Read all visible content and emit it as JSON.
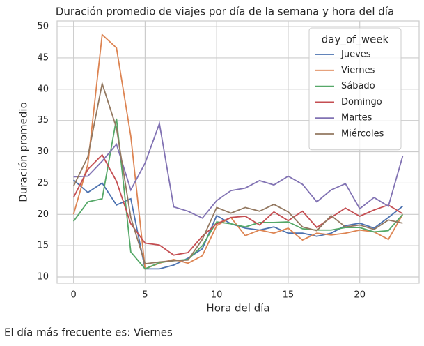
{
  "chart_data": {
    "type": "line",
    "title": "Duración promedio de viajes por día de la semana y hora del día",
    "x_label": "Hora del día",
    "y_label": "Duración promedio",
    "x": [
      0,
      1,
      2,
      3,
      4,
      5,
      6,
      7,
      8,
      9,
      10,
      11,
      12,
      13,
      14,
      15,
      16,
      17,
      18,
      19,
      20,
      21,
      22,
      23
    ],
    "xlim": [
      -1.15,
      24.15
    ],
    "xticks": [
      0,
      5,
      10,
      15,
      20
    ],
    "ylim": [
      9,
      50.9
    ],
    "yticks": [
      10,
      15,
      20,
      25,
      30,
      35,
      40,
      45,
      50
    ],
    "grid": true,
    "legend_title": "day_of_week",
    "legend_position": "upper-right",
    "series": [
      {
        "name": "Jueves",
        "color": "#4c72b0",
        "values": [
          25.5,
          23.5,
          25,
          21.5,
          22.5,
          11.3,
          11.3,
          11.9,
          13,
          14.5,
          19.8,
          18.5,
          17.8,
          17.5,
          18,
          17,
          17,
          16.5,
          17,
          18.2,
          18.6,
          17.8,
          19.5,
          21.3
        ]
      },
      {
        "name": "Viernes",
        "color": "#dd8452",
        "values": [
          20,
          28,
          48.7,
          46.6,
          32.5,
          11.3,
          12.2,
          12.8,
          12.2,
          13.4,
          18.2,
          19.5,
          16.6,
          17.5,
          17,
          17.8,
          15.9,
          17,
          16.7,
          17,
          17.5,
          17.2,
          16,
          20
        ]
      },
      {
        "name": "Sábado",
        "color": "#55a868",
        "values": [
          18.9,
          22,
          22.5,
          35.3,
          14,
          11.3,
          12.3,
          12.6,
          12.8,
          15,
          18.8,
          18.5,
          18,
          18.7,
          18.7,
          18.8,
          17.7,
          17.5,
          17.5,
          17.9,
          17.9,
          17.2,
          17.4,
          20
        ]
      },
      {
        "name": "Domingo",
        "color": "#c44e52",
        "values": [
          22.7,
          27.2,
          29.5,
          25.3,
          18.5,
          15.4,
          15.1,
          13.5,
          13.9,
          16.5,
          18.5,
          19.5,
          19.7,
          18.3,
          20.4,
          19,
          20.5,
          17.9,
          19.5,
          21,
          19.7,
          20.7,
          21.5,
          20.1
        ]
      },
      {
        "name": "Martes",
        "color": "#8172b3",
        "values": [
          26,
          26.1,
          28.5,
          31.2,
          23.9,
          28.2,
          34.5,
          21.2,
          20.5,
          19.4,
          22.2,
          23.8,
          24.2,
          25.4,
          24.7,
          26.1,
          24.8,
          22,
          23.9,
          24.9,
          20.9,
          22.7,
          21.3,
          29.3
        ]
      },
      {
        "name": "Miércoles",
        "color": "#937860",
        "values": [
          24.5,
          29.2,
          40.9,
          33.8,
          19.5,
          12.1,
          12.4,
          12.6,
          12.7,
          16,
          21.1,
          20.2,
          21.1,
          20.5,
          21.6,
          20.4,
          18,
          17.4,
          19.8,
          18,
          18.3,
          17.6,
          19.1,
          18.6
        ]
      }
    ]
  },
  "caption": "El día más frecuente es: Viernes"
}
